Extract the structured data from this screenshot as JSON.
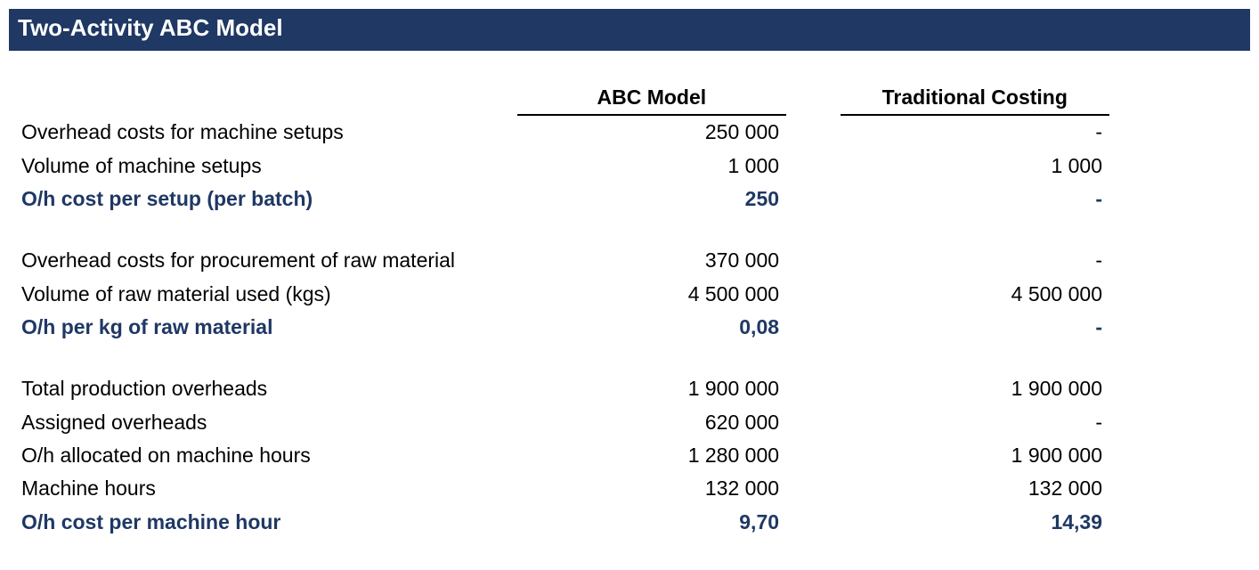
{
  "title": "Two-Activity ABC Model",
  "columns": {
    "abc": "ABC Model",
    "trad": "Traditional Costing"
  },
  "rows": {
    "r1": {
      "label": "Overhead costs for machine setups",
      "abc": "250 000",
      "trad": "-"
    },
    "r2": {
      "label": "Volume of machine setups",
      "abc": "1 000",
      "trad": "1 000"
    },
    "r3": {
      "label": "O/h cost per setup (per batch)",
      "abc": "250",
      "trad": "-"
    },
    "r4": {
      "label": "Overhead costs for procurement of raw material",
      "abc": "370 000",
      "trad": "-"
    },
    "r5": {
      "label": "Volume of raw material used (kgs)",
      "abc": "4 500 000",
      "trad": "4 500 000"
    },
    "r6": {
      "label": "O/h per kg of raw material",
      "abc": "0,08",
      "trad": "-"
    },
    "r7": {
      "label": "Total production overheads",
      "abc": "1 900 000",
      "trad": "1 900 000"
    },
    "r8": {
      "label": "Assigned overheads",
      "abc": "620 000",
      "trad": "-"
    },
    "r9": {
      "label": "O/h allocated on machine hours",
      "abc": "1 280 000",
      "trad": "1 900 000"
    },
    "r10": {
      "label": "Machine hours",
      "abc": "132 000",
      "trad": "132 000"
    },
    "r11": {
      "label": "O/h cost per machine hour",
      "abc": "9,70",
      "trad": "14,39"
    }
  },
  "colors": {
    "header_bg": "#1f3864",
    "header_fg": "#ffffff",
    "emphasis": "#1f3864"
  }
}
